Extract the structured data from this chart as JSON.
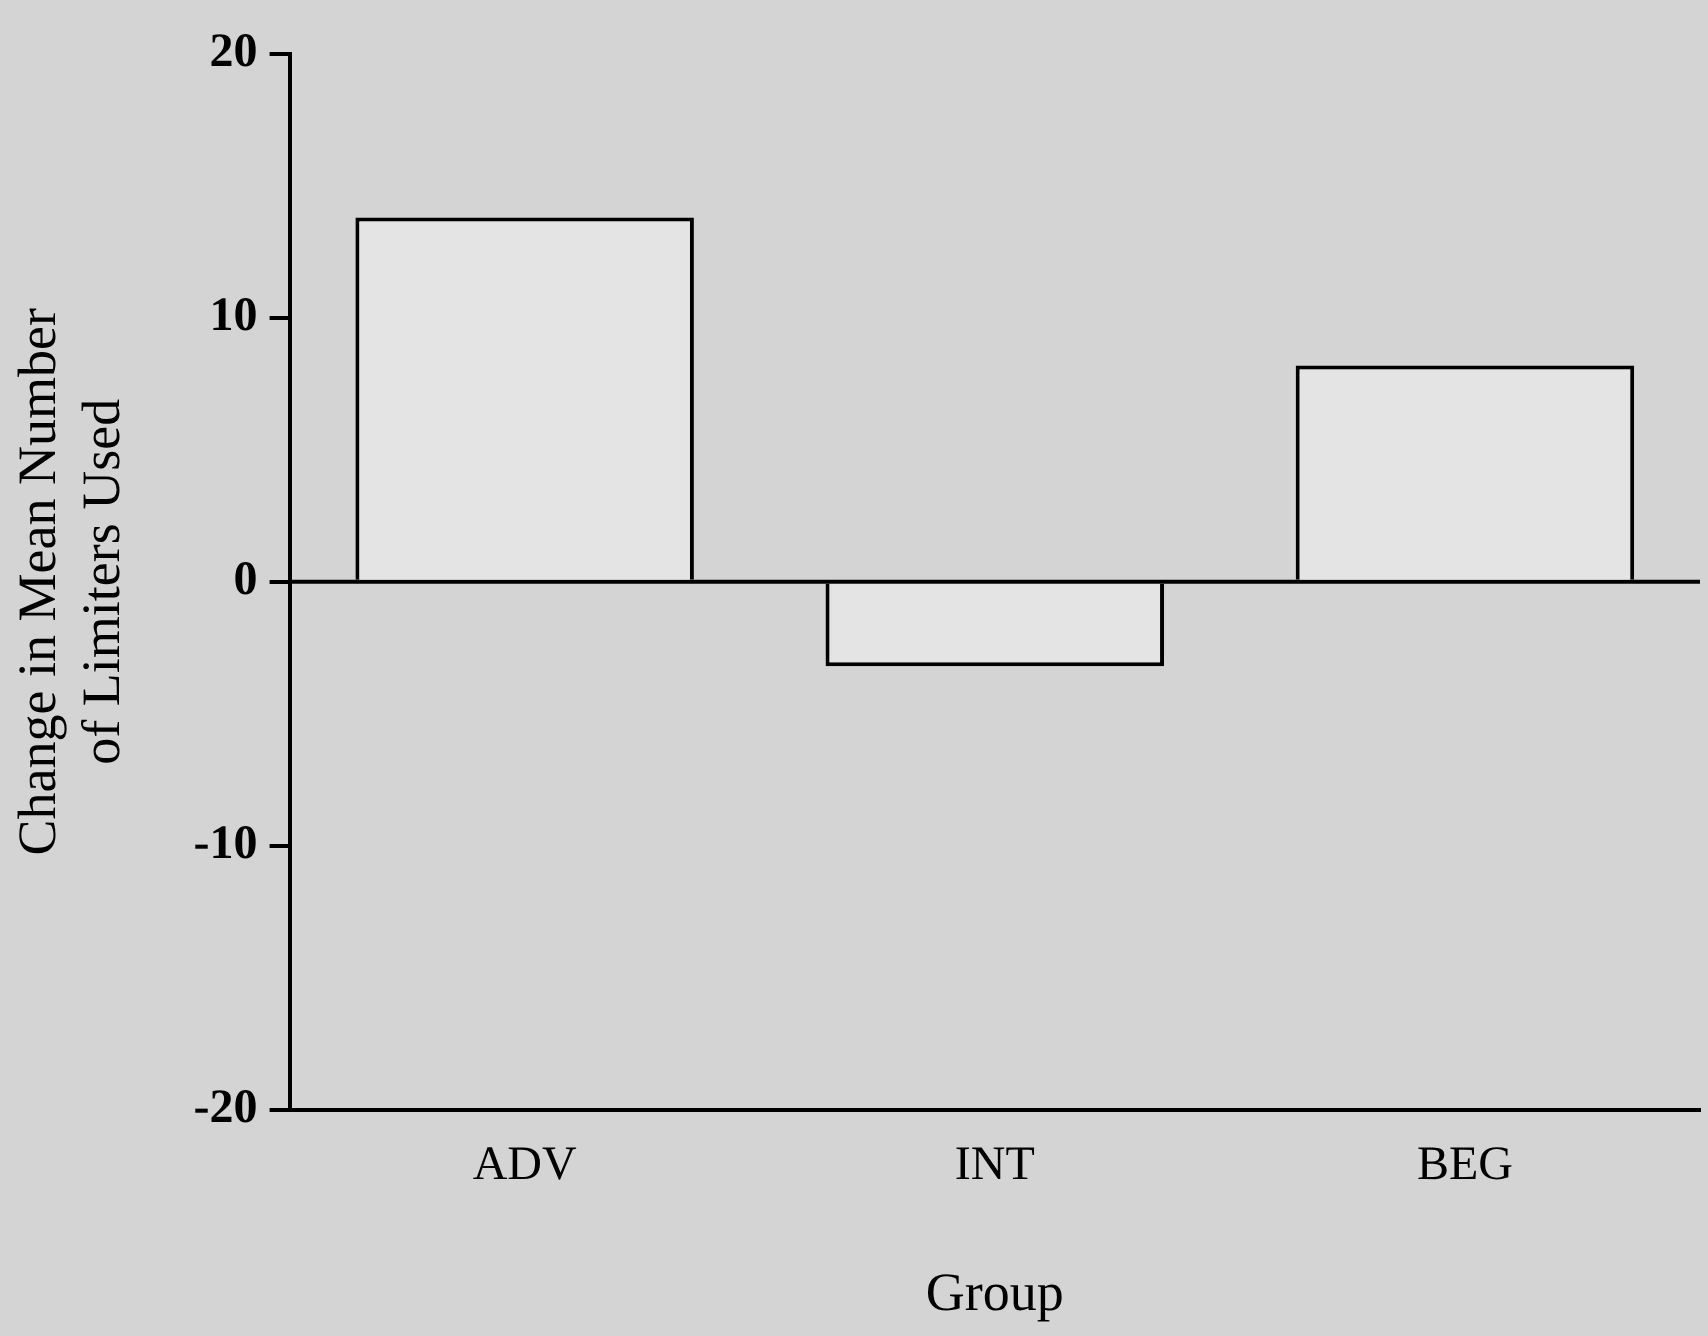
{
  "chart_data": {
    "type": "bar",
    "xlabel": "Group",
    "ylabel": "Change in Mean Number\nof Limiters Used",
    "categories": [
      "ADV",
      "INT",
      "BEG"
    ],
    "values": [
      13.8,
      -3.2,
      8.2
    ],
    "color": "#e4e4e4",
    "ylim": [
      -20,
      20
    ],
    "yticks": [
      -20,
      -10,
      0,
      10,
      20
    ],
    "grid": false,
    "legend": false,
    "ref_lines": [
      {
        "axis": "y",
        "value": 0,
        "color": "#000000"
      }
    ]
  }
}
